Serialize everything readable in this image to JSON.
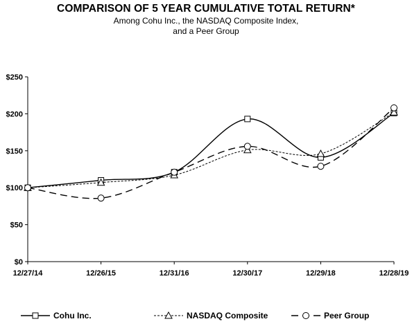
{
  "chart_data": {
    "type": "line",
    "title": "COMPARISON OF 5 YEAR CUMULATIVE TOTAL RETURN*",
    "subtitle_lines": [
      "Among Cohu Inc., the NASDAQ Composite Index,",
      "and a Peer Group"
    ],
    "categories": [
      "12/27/14",
      "12/26/15",
      "12/31/16",
      "12/30/17",
      "12/29/18",
      "12/28/19"
    ],
    "ylim": [
      0,
      250
    ],
    "yticks": [
      0,
      50,
      100,
      150,
      200,
      250
    ],
    "ytick_labels": [
      "$0",
      "$50",
      "$100",
      "$150",
      "$200",
      "$250"
    ],
    "grid": false,
    "legend_position": "bottom",
    "series": [
      {
        "name": "Cohu Inc.",
        "values": [
          100,
          110,
          121,
          193,
          141,
          201
        ],
        "line": "solid",
        "marker": "square",
        "color": "#000000"
      },
      {
        "name": "NASDAQ Composite",
        "values": [
          100,
          107,
          117,
          151,
          146,
          202
        ],
        "line": "dotted",
        "marker": "triangle",
        "color": "#000000"
      },
      {
        "name": "Peer Group",
        "values": [
          100,
          86,
          121,
          156,
          129,
          208
        ],
        "line": "dashed",
        "marker": "circle",
        "color": "#000000"
      }
    ]
  }
}
